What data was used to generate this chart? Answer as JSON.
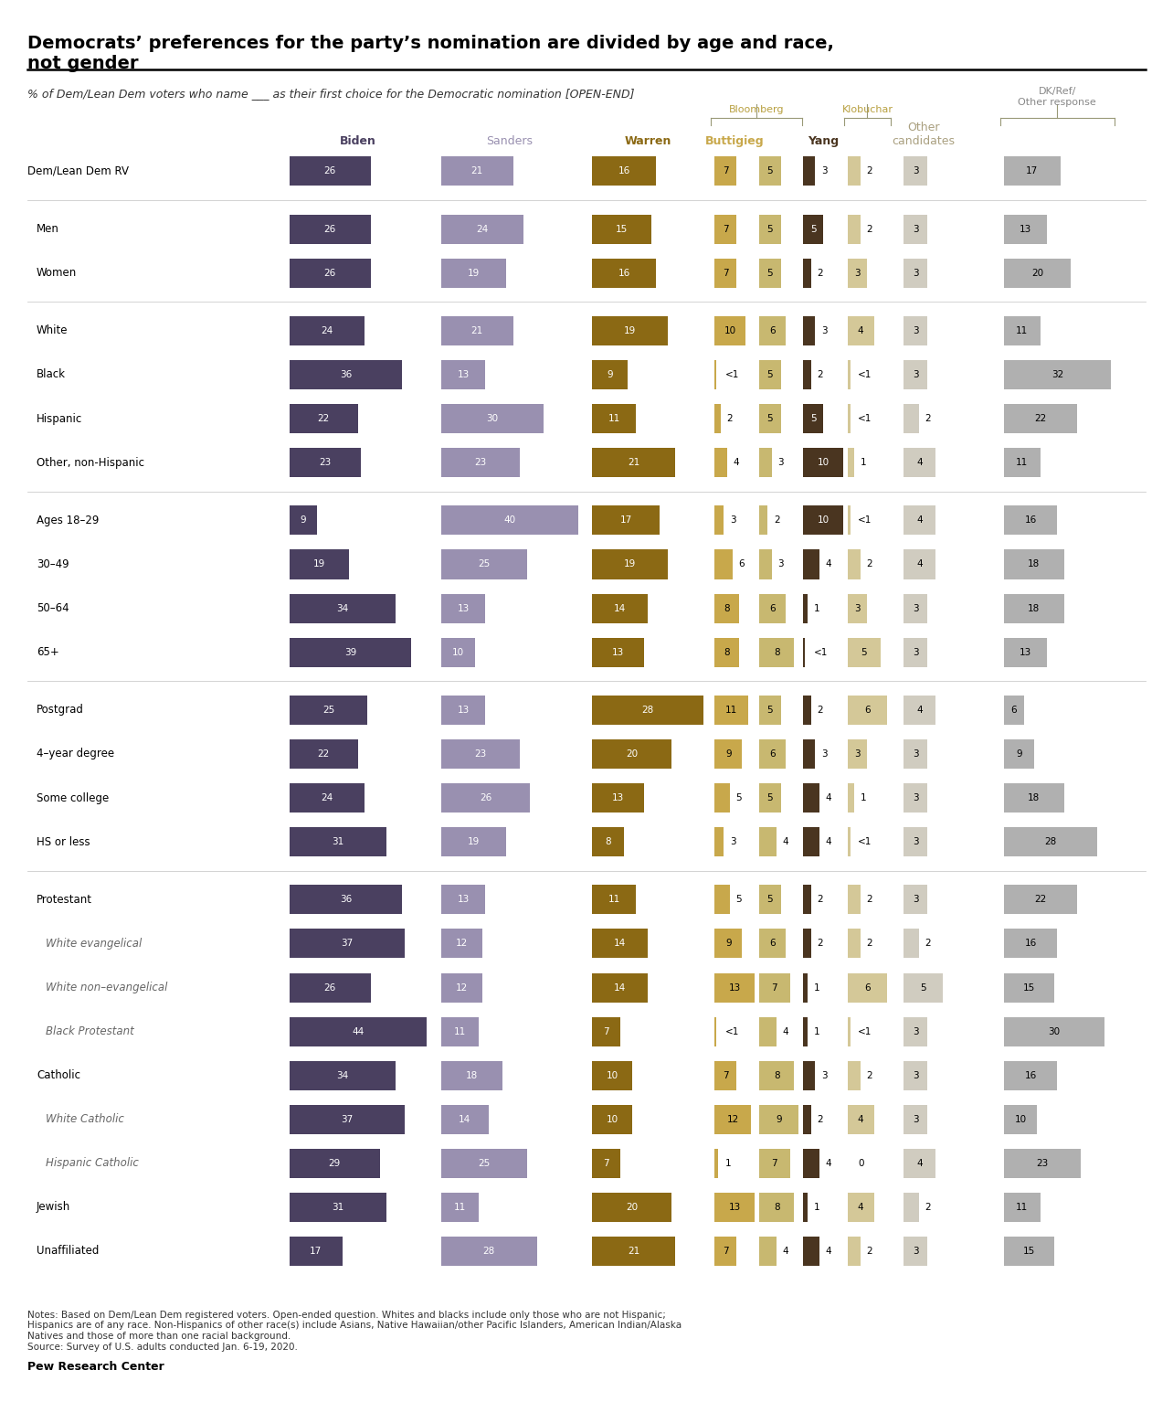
{
  "title": "Democrats’ preferences for the party’s nomination are divided by age and race,\nnot gender",
  "subtitle": "% of Dem/Lean Dem voters who name ___ as their first choice for the Democratic nomination [OPEN-END]",
  "bar_colors": {
    "Biden": "#4a4060",
    "Sanders": "#9990b0",
    "Warren": "#8b6914",
    "Buttigieg": "#c8a84b",
    "Bloomberg": "#c8b870",
    "Yang": "#4a3520",
    "Klobuchar": "#d4c898",
    "Other": "#d0ccc0",
    "DK": "#b0b0b0"
  },
  "rows": [
    {
      "label": "Dem/Lean Dem RV",
      "indent": 0,
      "italic": false,
      "values": [
        26,
        21,
        16,
        7,
        5,
        3,
        2,
        3,
        17
      ],
      "display": [
        "26",
        "21",
        "16",
        "7",
        "5",
        "3",
        "2",
        "3",
        "17"
      ]
    },
    {
      "label": "Men",
      "indent": 1,
      "italic": false,
      "values": [
        26,
        24,
        15,
        7,
        5,
        5,
        2,
        3,
        13
      ],
      "display": [
        "26",
        "24",
        "15",
        "7",
        "5",
        "5",
        "2",
        "3",
        "13"
      ]
    },
    {
      "label": "Women",
      "indent": 1,
      "italic": false,
      "values": [
        26,
        19,
        16,
        7,
        5,
        2,
        3,
        3,
        20
      ],
      "display": [
        "26",
        "19",
        "16",
        "7",
        "5",
        "2",
        "3",
        "3",
        "20"
      ]
    },
    {
      "label": "White",
      "indent": 1,
      "italic": false,
      "values": [
        24,
        21,
        19,
        10,
        6,
        3,
        4,
        3,
        11
      ],
      "display": [
        "24",
        "21",
        "19",
        "10",
        "6",
        "3",
        "4",
        "3",
        "11"
      ]
    },
    {
      "label": "Black",
      "indent": 1,
      "italic": false,
      "values": [
        36,
        13,
        9,
        0.5,
        5,
        2,
        0.5,
        3,
        32
      ],
      "display": [
        "36",
        "13",
        "9",
        "<1",
        "5",
        "2",
        "<1",
        "3",
        "32"
      ]
    },
    {
      "label": "Hispanic",
      "indent": 1,
      "italic": false,
      "values": [
        22,
        30,
        11,
        2,
        5,
        5,
        0.5,
        2,
        22
      ],
      "display": [
        "22",
        "30",
        "11",
        "2",
        "5",
        "5",
        "<1",
        "2",
        "22"
      ]
    },
    {
      "label": "Other, non-Hispanic",
      "indent": 1,
      "italic": false,
      "values": [
        23,
        23,
        21,
        4,
        3,
        10,
        1,
        4,
        11
      ],
      "display": [
        "23",
        "23",
        "21",
        "4",
        "3",
        "10",
        "1",
        "4",
        "11"
      ]
    },
    {
      "label": "Ages 18–29",
      "indent": 1,
      "italic": false,
      "values": [
        9,
        40,
        17,
        3,
        2,
        10,
        0.5,
        4,
        16
      ],
      "display": [
        "9",
        "40",
        "17",
        "3",
        "2",
        "10",
        "<1",
        "4",
        "16"
      ]
    },
    {
      "label": "30–49",
      "indent": 1,
      "italic": false,
      "values": [
        19,
        25,
        19,
        6,
        3,
        4,
        2,
        4,
        18
      ],
      "display": [
        "19",
        "25",
        "19",
        "6",
        "3",
        "4",
        "2",
        "4",
        "18"
      ]
    },
    {
      "label": "50–64",
      "indent": 1,
      "italic": false,
      "values": [
        34,
        13,
        14,
        8,
        6,
        1,
        3,
        3,
        18
      ],
      "display": [
        "34",
        "13",
        "14",
        "8",
        "6",
        "1",
        "3",
        "3",
        "18"
      ]
    },
    {
      "label": "65+",
      "indent": 1,
      "italic": false,
      "values": [
        39,
        10,
        13,
        8,
        8,
        0.5,
        5,
        3,
        13
      ],
      "display": [
        "39",
        "10",
        "13",
        "8",
        "8",
        "<1",
        "5",
        "3",
        "13"
      ]
    },
    {
      "label": "Postgrad",
      "indent": 1,
      "italic": false,
      "values": [
        25,
        13,
        28,
        11,
        5,
        2,
        6,
        4,
        6
      ],
      "display": [
        "25",
        "13",
        "28",
        "11",
        "5",
        "2",
        "6",
        "4",
        "6"
      ]
    },
    {
      "label": "4–year degree",
      "indent": 1,
      "italic": false,
      "values": [
        22,
        23,
        20,
        9,
        6,
        3,
        3,
        3,
        9
      ],
      "display": [
        "22",
        "23",
        "20",
        "9",
        "6",
        "3",
        "3",
        "3",
        "9"
      ]
    },
    {
      "label": "Some college",
      "indent": 1,
      "italic": false,
      "values": [
        24,
        26,
        13,
        5,
        5,
        4,
        1,
        3,
        18
      ],
      "display": [
        "24",
        "26",
        "13",
        "5",
        "5",
        "4",
        "1",
        "3",
        "18"
      ]
    },
    {
      "label": "HS or less",
      "indent": 1,
      "italic": false,
      "values": [
        31,
        19,
        8,
        3,
        4,
        4,
        0.5,
        3,
        28
      ],
      "display": [
        "31",
        "19",
        "8",
        "3",
        "4",
        "4",
        "<1",
        "3",
        "28"
      ]
    },
    {
      "label": "Protestant",
      "indent": 1,
      "italic": false,
      "values": [
        36,
        13,
        11,
        5,
        5,
        2,
        2,
        3,
        22
      ],
      "display": [
        "36",
        "13",
        "11",
        "5",
        "5",
        "2",
        "2",
        "3",
        "22"
      ]
    },
    {
      "label": "White evangelical",
      "indent": 2,
      "italic": true,
      "values": [
        37,
        12,
        14,
        9,
        6,
        2,
        2,
        2,
        16
      ],
      "display": [
        "37",
        "12",
        "14",
        "9",
        "6",
        "2",
        "2",
        "2",
        "16"
      ]
    },
    {
      "label": "White non–evangelical",
      "indent": 2,
      "italic": true,
      "values": [
        26,
        12,
        14,
        13,
        7,
        1,
        6,
        5,
        15
      ],
      "display": [
        "26",
        "12",
        "14",
        "13",
        "7",
        "1",
        "6",
        "5",
        "15"
      ]
    },
    {
      "label": "Black Protestant",
      "indent": 2,
      "italic": true,
      "values": [
        44,
        11,
        7,
        0.5,
        4,
        1,
        0.5,
        3,
        30
      ],
      "display": [
        "44",
        "11",
        "7",
        "<1",
        "4",
        "1",
        "<1",
        "3",
        "30"
      ]
    },
    {
      "label": "Catholic",
      "indent": 1,
      "italic": false,
      "values": [
        34,
        18,
        10,
        7,
        8,
        3,
        2,
        3,
        16
      ],
      "display": [
        "34",
        "18",
        "10",
        "7",
        "8",
        "3",
        "2",
        "3",
        "16"
      ]
    },
    {
      "label": "White Catholic",
      "indent": 2,
      "italic": true,
      "values": [
        37,
        14,
        10,
        12,
        9,
        2,
        4,
        3,
        10
      ],
      "display": [
        "37",
        "14",
        "10",
        "12",
        "9",
        "2",
        "4",
        "3",
        "10"
      ]
    },
    {
      "label": "Hispanic Catholic",
      "indent": 2,
      "italic": true,
      "values": [
        29,
        25,
        7,
        1,
        7,
        4,
        0,
        4,
        23
      ],
      "display": [
        "29",
        "25",
        "7",
        "1",
        "7",
        "4",
        "0",
        "4",
        "23"
      ]
    },
    {
      "label": "Jewish",
      "indent": 1,
      "italic": false,
      "values": [
        31,
        11,
        20,
        13,
        8,
        1,
        4,
        2,
        11
      ],
      "display": [
        "31",
        "11",
        "20",
        "13",
        "8",
        "1",
        "4",
        "2",
        "11"
      ]
    },
    {
      "label": "Unaffiliated",
      "indent": 1,
      "italic": false,
      "values": [
        17,
        28,
        21,
        7,
        4,
        4,
        2,
        3,
        15
      ],
      "display": [
        "17",
        "28",
        "21",
        "7",
        "4",
        "4",
        "2",
        "3",
        "15"
      ]
    }
  ],
  "group_separator_before": [
    1,
    3,
    7,
    11,
    15
  ],
  "notes": "Notes: Based on Dem/Lean Dem registered voters. Open-ended question. Whites and blacks include only those who are not Hispanic;\nHispanics are of any race. Non-Hispanics of other race(s) include Asians, Native Hawaiian/other Pacific Islanders, American Indian/Alaska\nNatives and those of more than one racial background.\nSource: Survey of U.S. adults conducted Jan. 6-19, 2020.",
  "source": "Pew Research Center"
}
